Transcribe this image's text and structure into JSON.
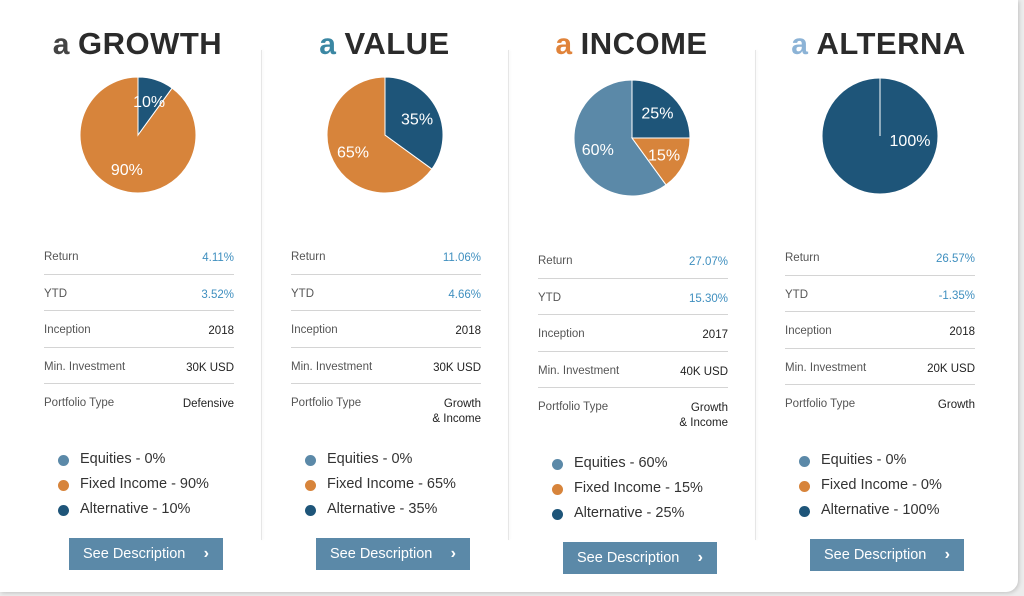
{
  "colors": {
    "equities": "#5b89a8",
    "fixed_income": "#d7843b",
    "alternative": "#1e5579",
    "value_blue": "#3f8fbf",
    "button": "#5b89a8"
  },
  "portfolios": [
    {
      "prefix": "a",
      "prefix_color": "#444444",
      "name": "GROWTH",
      "stats": [
        {
          "label": "Return",
          "value": "4.11%",
          "tone": "blue"
        },
        {
          "label": "YTD",
          "value": "3.52%",
          "tone": "blue"
        },
        {
          "label": "Inception",
          "value": "2018",
          "tone": "dark"
        },
        {
          "label": "Min. Investment",
          "value": "30K USD",
          "tone": "dark"
        },
        {
          "label": "Portfolio Type",
          "value": "Defensive",
          "tone": "dark"
        }
      ],
      "legend": [
        "Equities - 0%",
        "Fixed Income - 90%",
        "Alternative - 10%"
      ],
      "button_label": "See Description"
    },
    {
      "prefix": "a",
      "prefix_color": "#3b87a3",
      "name": "VALUE",
      "stats": [
        {
          "label": "Return",
          "value": "11.06%",
          "tone": "blue"
        },
        {
          "label": "YTD",
          "value": "4.66%",
          "tone": "blue"
        },
        {
          "label": "Inception",
          "value": "2018",
          "tone": "dark"
        },
        {
          "label": "Min. Investment",
          "value": "30K USD",
          "tone": "dark"
        },
        {
          "label": "Portfolio Type",
          "value": "Growth\n& Income",
          "tone": "dark"
        }
      ],
      "legend": [
        "Equities - 0%",
        "Fixed Income - 65%",
        "Alternative - 35%"
      ],
      "button_label": "See Description"
    },
    {
      "prefix": "a",
      "prefix_color": "#e0833a",
      "name": "INCOME",
      "stats": [
        {
          "label": "Return",
          "value": "27.07%",
          "tone": "blue"
        },
        {
          "label": "YTD",
          "value": "15.30%",
          "tone": "blue"
        },
        {
          "label": "Inception",
          "value": "2017",
          "tone": "dark"
        },
        {
          "label": "Min. Investment",
          "value": "40K USD",
          "tone": "dark"
        },
        {
          "label": "Portfolio Type",
          "value": "Growth\n& Income",
          "tone": "dark"
        }
      ],
      "legend": [
        "Equities - 60%",
        "Fixed Income - 15%",
        "Alternative - 25%"
      ],
      "button_label": "See Description"
    },
    {
      "prefix": "a",
      "prefix_color": "#8cb3d6",
      "name": "ALTERNA",
      "stats": [
        {
          "label": "Return",
          "value": "26.57%",
          "tone": "blue"
        },
        {
          "label": "YTD",
          "value": "-1.35%",
          "tone": "blue"
        },
        {
          "label": "Inception",
          "value": "2018",
          "tone": "dark"
        },
        {
          "label": "Min. Investment",
          "value": "20K USD",
          "tone": "dark"
        },
        {
          "label": "Portfolio Type",
          "value": "Growth",
          "tone": "dark"
        }
      ],
      "legend": [
        "Equities - 0%",
        "Fixed Income - 0%",
        "Alternative - 100%"
      ],
      "button_label": "See Description"
    }
  ],
  "chart_data": [
    {
      "type": "pie",
      "categories": [
        "Equities",
        "Fixed Income",
        "Alternative"
      ],
      "values": [
        0,
        90,
        10
      ],
      "labels": [
        "",
        "90%",
        "10%"
      ]
    },
    {
      "type": "pie",
      "categories": [
        "Equities",
        "Fixed Income",
        "Alternative"
      ],
      "values": [
        0,
        65,
        35
      ],
      "labels": [
        "",
        "65%",
        "35%"
      ]
    },
    {
      "type": "pie",
      "categories": [
        "Equities",
        "Fixed Income",
        "Alternative"
      ],
      "values": [
        60,
        15,
        25
      ],
      "labels": [
        "60%",
        "15%",
        "25%"
      ]
    },
    {
      "type": "pie",
      "categories": [
        "Equities",
        "Fixed Income",
        "Alternative"
      ],
      "values": [
        0,
        0,
        100
      ],
      "labels": [
        "",
        "",
        "100%"
      ]
    }
  ]
}
